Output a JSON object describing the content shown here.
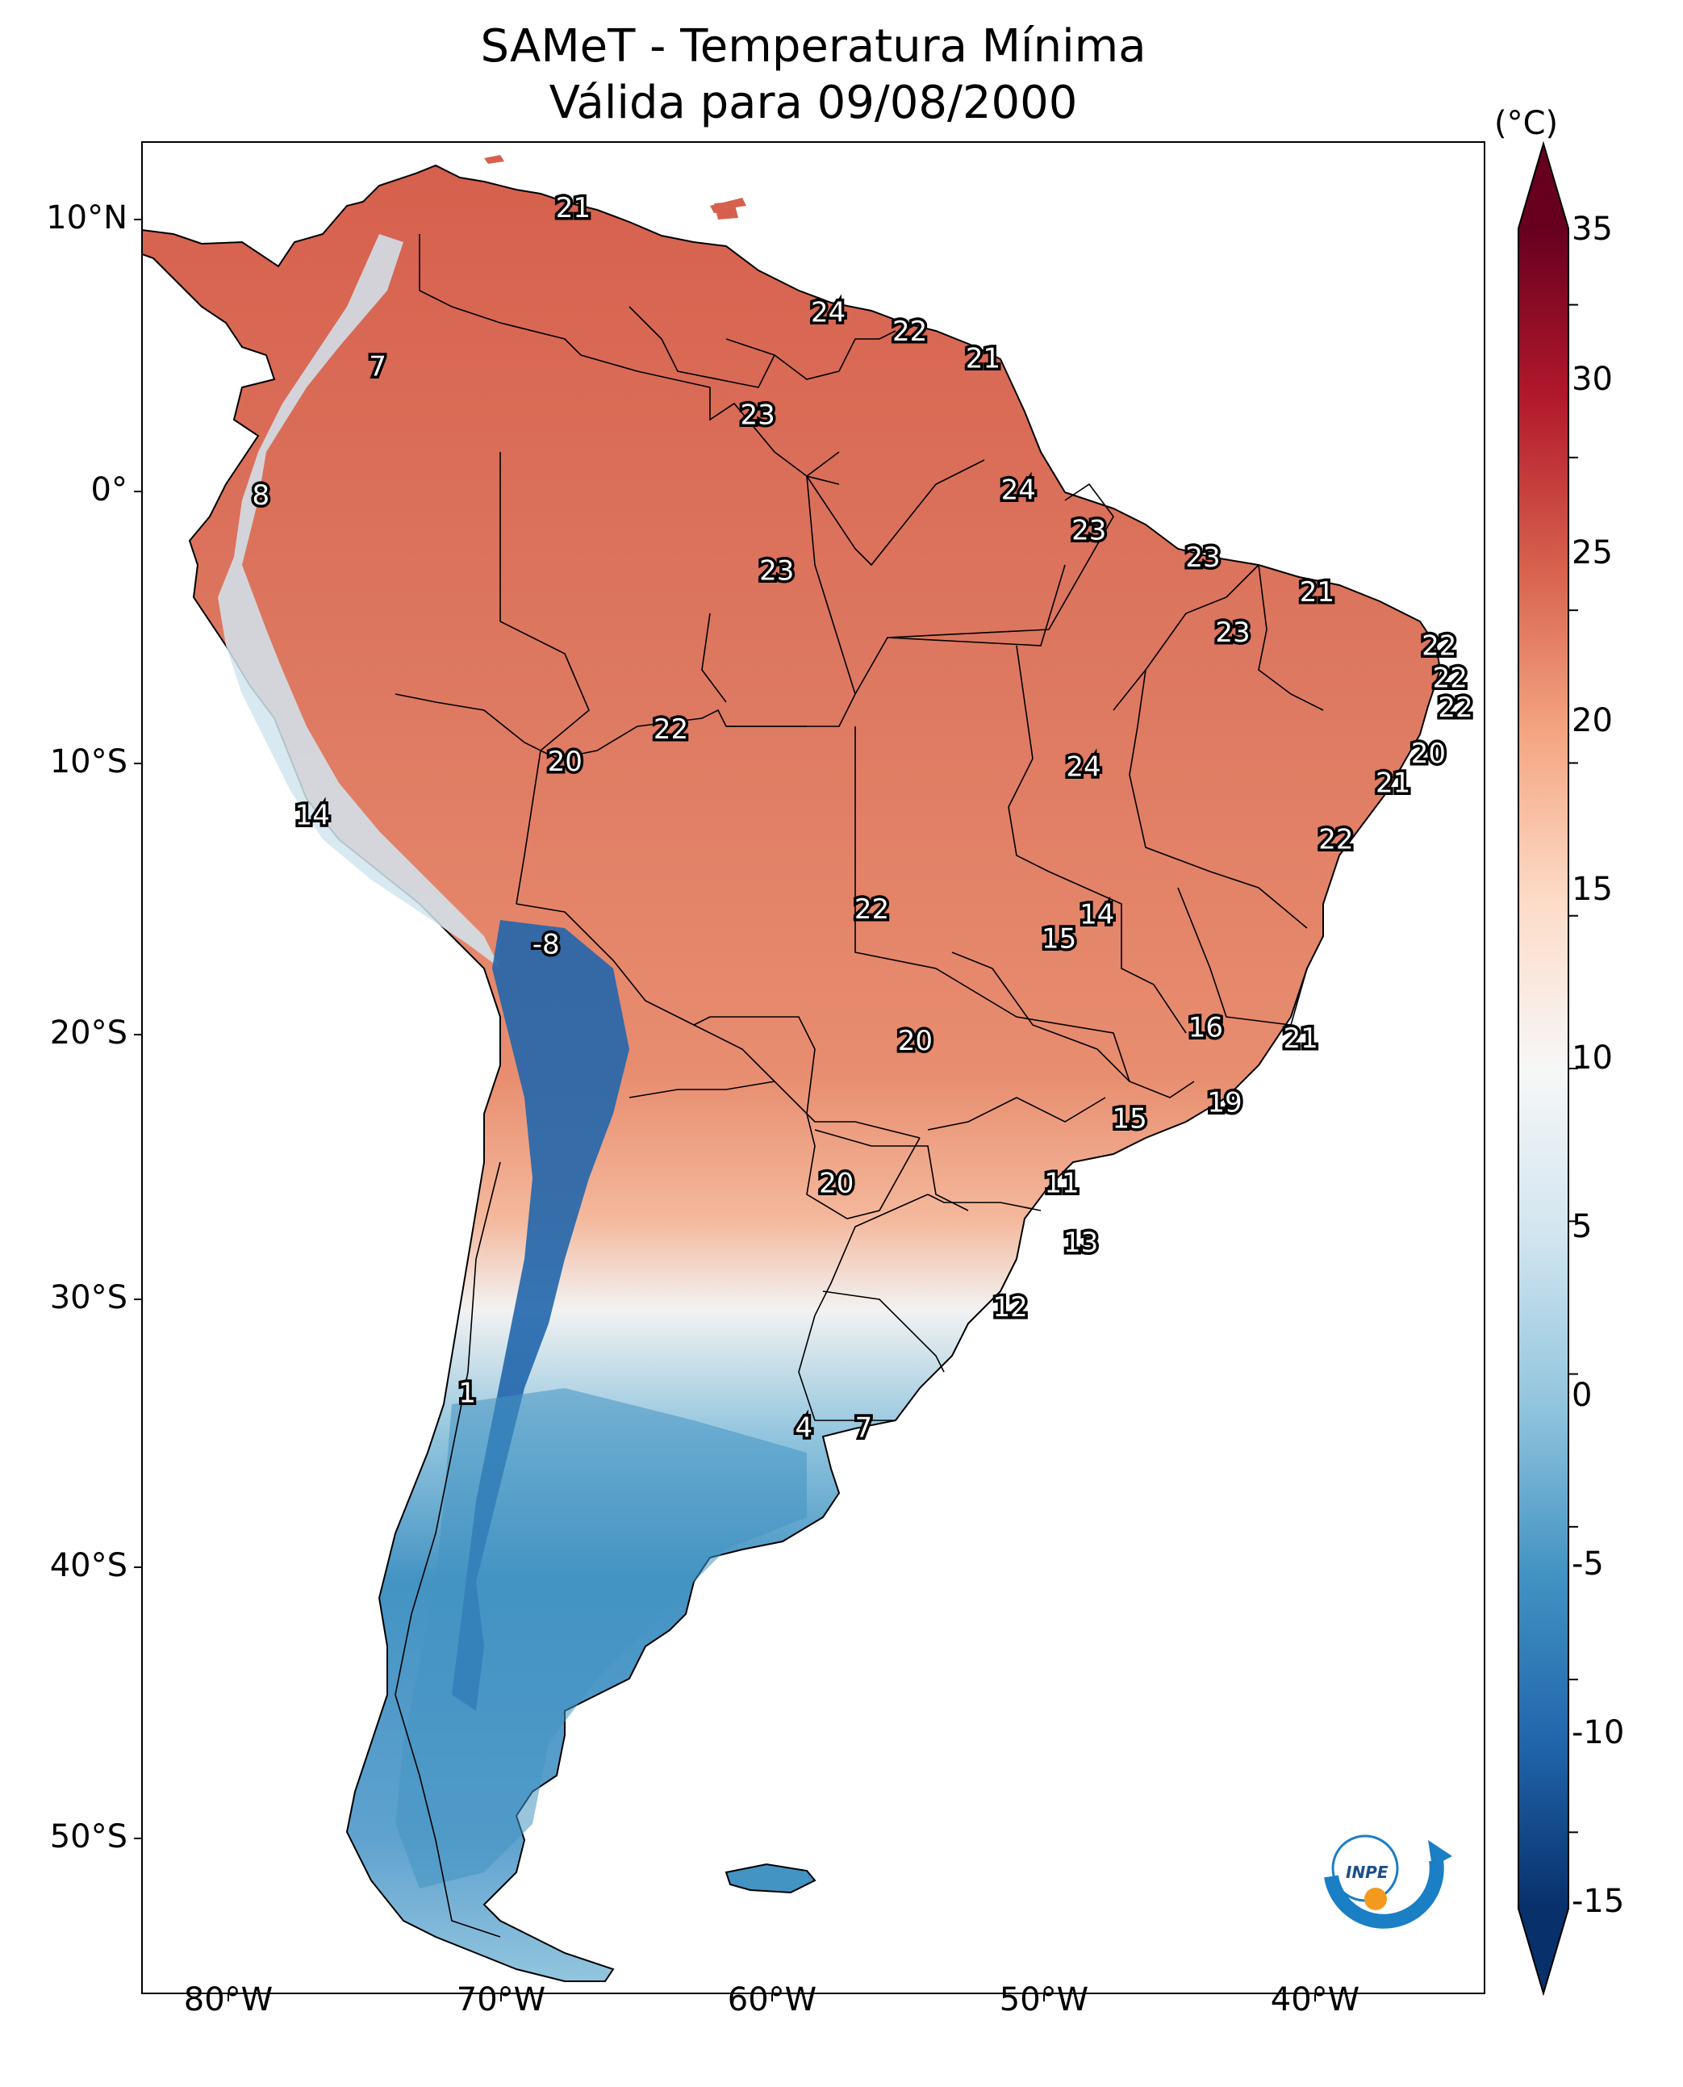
{
  "title_line1": "SAMeT - Temperatura Mínima",
  "title_line2": "Válida para 09/08/2000",
  "colorbar": {
    "unit": "(°C)",
    "ticks": [
      "35",
      "30",
      "25",
      "20",
      "15",
      "10",
      "5",
      "0",
      "-5",
      "-10",
      "-15"
    ],
    "min": -17.5,
    "max": 37.5,
    "colors_low_to_high": [
      "#08306b",
      "#2166ac",
      "#4393c3",
      "#92c5de",
      "#d1e5f0",
      "#f7f7f7",
      "#fddbc7",
      "#f4a582",
      "#d6604d",
      "#b2182b",
      "#67001f"
    ]
  },
  "axes": {
    "lat_labels": [
      "10°N",
      "0°",
      "10°S",
      "20°S",
      "30°S",
      "40°S",
      "50°S"
    ],
    "lon_labels": [
      "80°W",
      "70°W",
      "60°W",
      "50°W",
      "40°W"
    ]
  },
  "map_labels": [
    {
      "text": "21",
      "lon": -67.3,
      "lat": 10.5
    },
    {
      "text": "24",
      "lon": -57.9,
      "lat": 6.6
    },
    {
      "text": "22",
      "lon": -54.9,
      "lat": 5.9
    },
    {
      "text": "21",
      "lon": -52.2,
      "lat": 4.9
    },
    {
      "text": "7",
      "lon": -74.5,
      "lat": 4.6
    },
    {
      "text": "23",
      "lon": -60.5,
      "lat": 2.8
    },
    {
      "text": "8",
      "lon": -78.8,
      "lat": -0.2
    },
    {
      "text": "24",
      "lon": -50.9,
      "lat": 0.0
    },
    {
      "text": "23",
      "lon": -48.3,
      "lat": -1.5
    },
    {
      "text": "23",
      "lon": -59.8,
      "lat": -3.0
    },
    {
      "text": "23",
      "lon": -44.1,
      "lat": -2.5
    },
    {
      "text": "21",
      "lon": -39.9,
      "lat": -3.8
    },
    {
      "text": "23",
      "lon": -43.0,
      "lat": -5.3
    },
    {
      "text": "22",
      "lon": -35.4,
      "lat": -5.8
    },
    {
      "text": "22",
      "lon": -35.0,
      "lat": -7.0
    },
    {
      "text": "22",
      "lon": -34.8,
      "lat": -8.1
    },
    {
      "text": "22",
      "lon": -63.7,
      "lat": -8.9
    },
    {
      "text": "20",
      "lon": -67.6,
      "lat": -10.1
    },
    {
      "text": "20",
      "lon": -35.8,
      "lat": -9.8
    },
    {
      "text": "24",
      "lon": -48.5,
      "lat": -10.3
    },
    {
      "text": "21",
      "lon": -37.1,
      "lat": -10.9
    },
    {
      "text": "14",
      "lon": -76.9,
      "lat": -12.1
    },
    {
      "text": "22",
      "lon": -39.2,
      "lat": -13.0
    },
    {
      "text": "22",
      "lon": -56.3,
      "lat": -15.6
    },
    {
      "text": "14",
      "lon": -48.0,
      "lat": -15.8
    },
    {
      "text": "15",
      "lon": -49.4,
      "lat": -16.7
    },
    {
      "text": "-8",
      "lon": -68.3,
      "lat": -16.9
    },
    {
      "text": "16",
      "lon": -44.0,
      "lat": -20.0
    },
    {
      "text": "20",
      "lon": -54.7,
      "lat": -20.5
    },
    {
      "text": "21",
      "lon": -40.5,
      "lat": -20.4
    },
    {
      "text": "19",
      "lon": -43.3,
      "lat": -22.8
    },
    {
      "text": "15",
      "lon": -46.8,
      "lat": -23.4
    },
    {
      "text": "20",
      "lon": -57.6,
      "lat": -25.8
    },
    {
      "text": "11",
      "lon": -49.3,
      "lat": -25.8
    },
    {
      "text": "13",
      "lon": -48.6,
      "lat": -28.0
    },
    {
      "text": "12",
      "lon": -51.2,
      "lat": -30.4
    },
    {
      "text": "1",
      "lon": -71.2,
      "lat": -33.6
    },
    {
      "text": "4",
      "lon": -58.8,
      "lat": -34.9
    },
    {
      "text": "7",
      "lon": -56.6,
      "lat": -34.9
    }
  ],
  "logo_text": "INPE"
}
